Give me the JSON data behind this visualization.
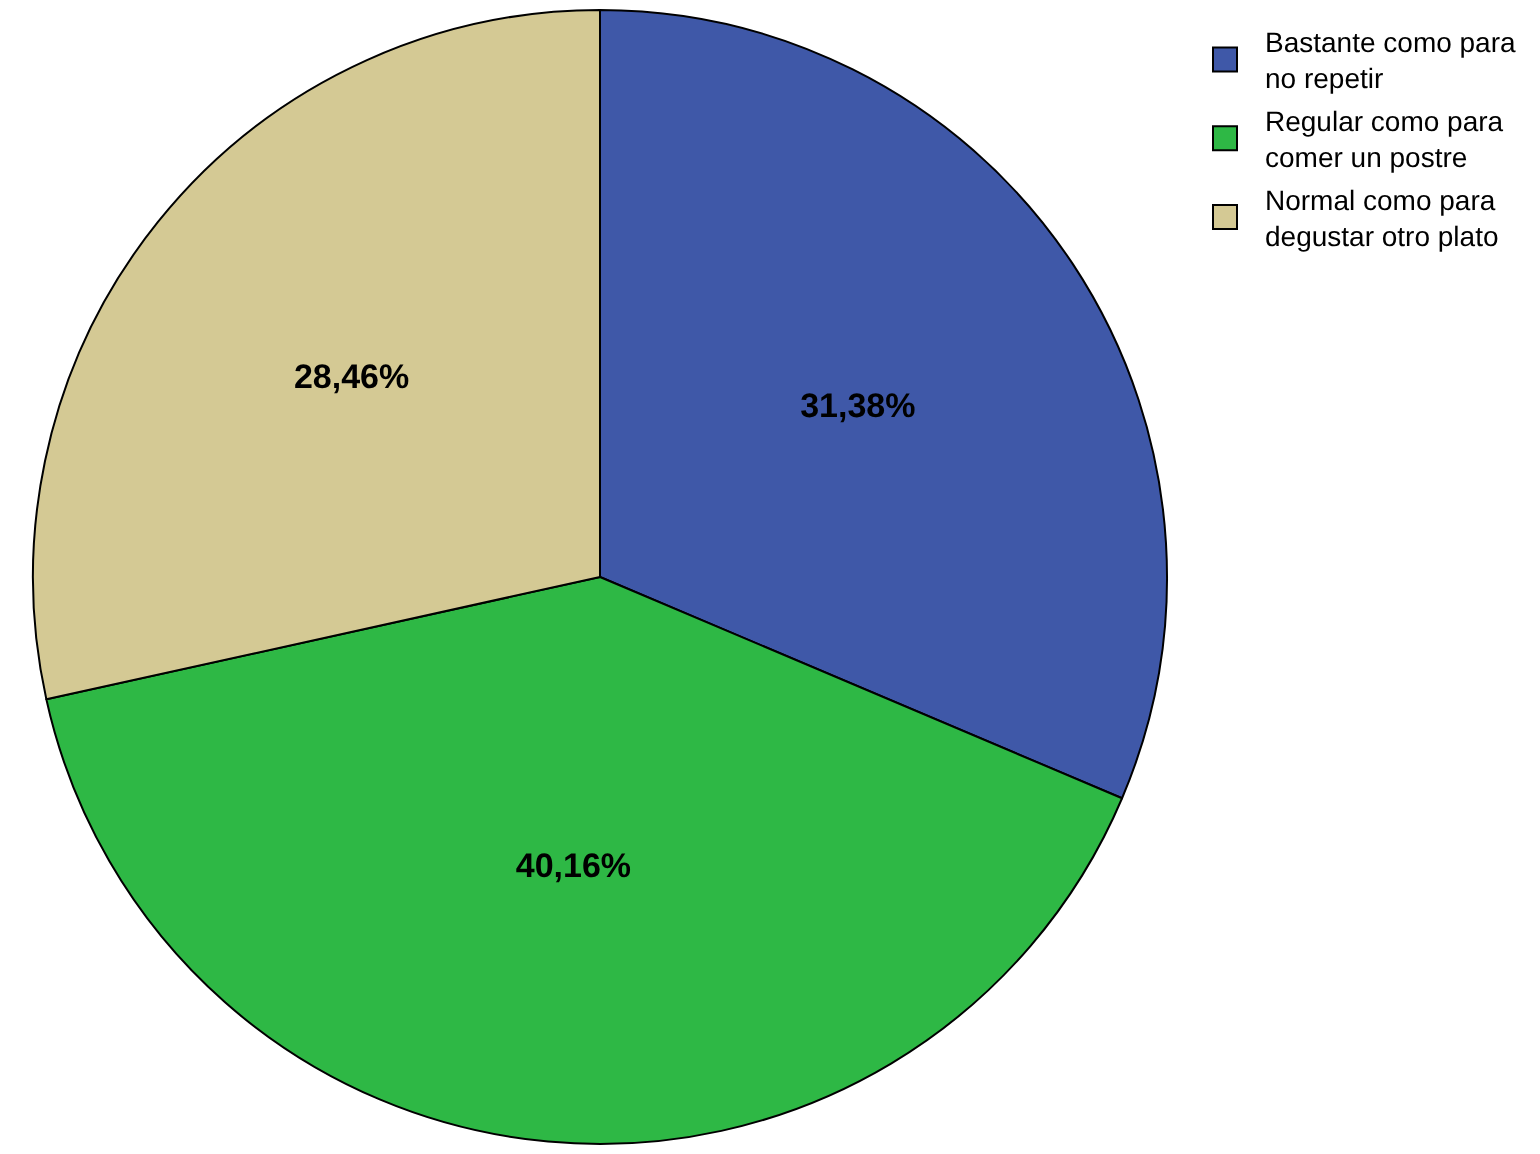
{
  "chart_data": {
    "type": "pie",
    "categories": [
      "Bastante como para no repetir",
      "Regular como para comer un postre",
      "Normal como para degustar otro plato"
    ],
    "values": [
      31.38,
      40.16,
      28.46
    ],
    "colors": [
      "#3f58a8",
      "#2eb845",
      "#d4c994"
    ],
    "value_labels": [
      "31,38%",
      "40,16%",
      "28,46%"
    ],
    "legend": "top right"
  }
}
